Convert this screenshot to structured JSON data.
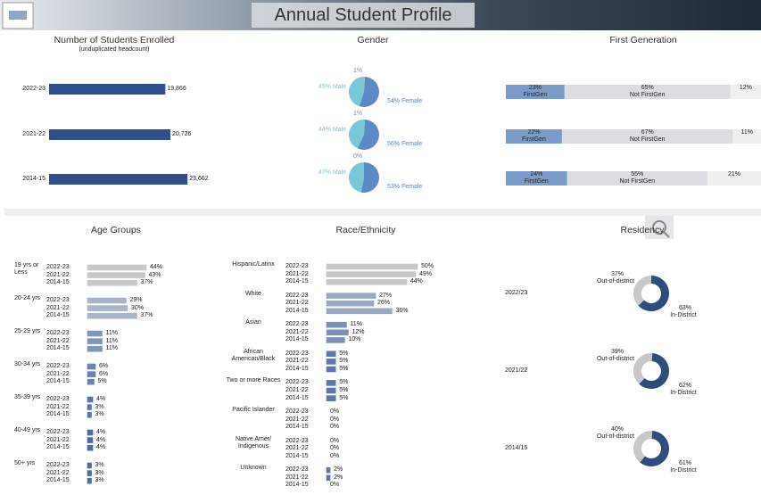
{
  "title": "Annual Student Profile",
  "chart_data": [
    {
      "type": "bar",
      "title": "Number of Students Enrolled",
      "subtitle": "(unduplicated headcount)",
      "categories": [
        "2022-23",
        "2021-22",
        "2014-15"
      ],
      "values": [
        19866,
        20726,
        23662
      ],
      "value_labels": [
        "19,866",
        "20,726",
        "23,662"
      ],
      "color": "#2f4f8f"
    },
    {
      "type": "pie",
      "title": "Gender",
      "series": [
        {
          "color": "#7ac8d6",
          "values": [
            45,
            44,
            47
          ],
          "value_labels": [
            "45% Male",
            "44% Male",
            "47% Male"
          ]
        },
        {
          "color": "#5b8ac4",
          "values": [
            54,
            56,
            53
          ],
          "value_labels": [
            "54% Female",
            "56% Female",
            "53% Female"
          ]
        },
        {
          "color": "#b8b8b8",
          "values": [
            1,
            1,
            0
          ],
          "value_labels": [
            "1%",
            "1%",
            "0%"
          ]
        }
      ]
    },
    {
      "type": "stacked-bar",
      "title": "First Generation",
      "series": [
        {
          "name": "FirstGen",
          "color": "#7b9cc9",
          "values": [
            23,
            22,
            24
          ],
          "value_labels": [
            "23%",
            "22%",
            "24%"
          ]
        },
        {
          "name": "Not FirstGen",
          "color": "#dcdde0",
          "values": [
            65,
            67,
            55
          ],
          "value_labels": [
            "65%",
            "67%",
            "55%"
          ]
        },
        {
          "color": "#f0f0f0",
          "values": [
            12,
            11,
            21
          ],
          "value_labels": [
            "12%",
            "11%",
            "21%"
          ]
        }
      ]
    },
    {
      "type": "grouped-bar",
      "title": "Age Groups",
      "categories": [
        "19 yrs or Less",
        "20-24 yrs",
        "25-29 yrs",
        "30-34 yrs",
        "35-39 yrs",
        "40-49 yrs",
        "50+ yrs"
      ],
      "colors": [
        "#c8c8c8",
        "#a9b4c6",
        "#8197b9",
        "#6a84ad",
        "#5a77a6",
        "#4f6d9e",
        "#4f6d9e"
      ],
      "series": [
        {
          "name": "2022-23",
          "values": [
            44,
            29,
            11,
            6,
            4,
            4,
            3
          ],
          "value_labels": [
            "44%",
            "29%",
            "11%",
            "6%",
            "4%",
            "4%",
            "3%"
          ]
        },
        {
          "name": "2021-22",
          "values": [
            43,
            30,
            11,
            6,
            3,
            4,
            3
          ],
          "value_labels": [
            "43%",
            "30%",
            "11%",
            "6%",
            "3%",
            "4%",
            "3%"
          ]
        },
        {
          "name": "2014-15",
          "values": [
            37,
            37,
            11,
            5,
            3,
            4,
            3
          ],
          "value_labels": [
            "37%",
            "37%",
            "11%",
            "5%",
            "3%",
            "4%",
            "3%"
          ]
        }
      ]
    },
    {
      "type": "grouped-bar",
      "title": "Race/Ethnicity",
      "categories": [
        "Hispanic/Latinx",
        "White",
        "Asian",
        "African American/Black",
        "Two or more Races",
        "Pacific Islander",
        "Native Amer/ Indigenous",
        "Unknown"
      ],
      "colors": [
        "#c8c8c8",
        "#9aa9c1",
        "#7c92b5",
        "#5e79a6",
        "#5e79a6",
        "#5e79a6",
        "#5e79a6",
        "#5e79a6"
      ],
      "series": [
        {
          "name": "2022-23",
          "values": [
            50,
            27,
            11,
            5,
            5,
            0,
            0,
            2
          ],
          "value_labels": [
            "50%",
            "27%",
            "11%",
            "5%",
            "5%",
            "0%",
            "0%",
            "2%"
          ]
        },
        {
          "name": "2021-22",
          "values": [
            49,
            26,
            12,
            5,
            5,
            0,
            0,
            2
          ],
          "value_labels": [
            "49%",
            "26%",
            "12%",
            "5%",
            "5%",
            "0%",
            "0%",
            "2%"
          ]
        },
        {
          "name": "2014-15",
          "values": [
            44,
            36,
            10,
            5,
            5,
            0,
            0,
            0
          ],
          "value_labels": [
            "44%",
            "36%",
            "10%",
            "5%",
            "5%",
            "0%",
            "0%",
            "0%"
          ]
        }
      ]
    },
    {
      "type": "donut",
      "title": "Residency",
      "categories": [
        "2022/23",
        "2021/22",
        "2014/15"
      ],
      "series": [
        {
          "name": "Out-of-district",
          "color": "#c8c8c8",
          "values": [
            37,
            39,
            40
          ],
          "value_labels": [
            "37%",
            "39%",
            "40%"
          ]
        },
        {
          "name": "In-District",
          "color": "#2e4d7b",
          "values": [
            63,
            62,
            61
          ],
          "value_labels": [
            "63%",
            "62%",
            "61%"
          ]
        }
      ]
    }
  ]
}
